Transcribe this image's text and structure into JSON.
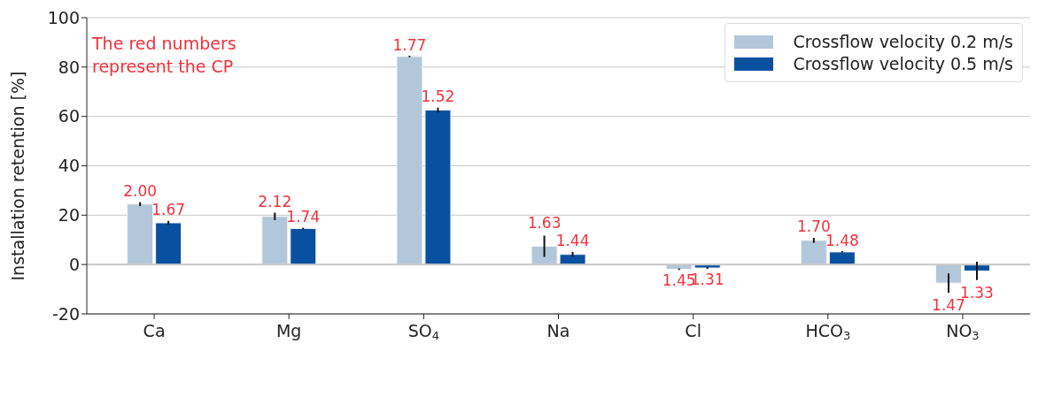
{
  "chart_data": {
    "type": "bar",
    "ylabel": "Installation retention [%]",
    "categories": [
      "Ca",
      "Mg",
      "SO$_{4}$",
      "Na",
      "Cl",
      "HCO$_{3}$",
      "NO$_{3}$"
    ],
    "series": [
      {
        "name": "Crossflow velocity 0.2 m/s",
        "color": "#b3c7da",
        "values": [
          24.5,
          19.5,
          84.3,
          7.4,
          -1.9,
          9.8,
          -7.5
        ],
        "errors": [
          0.8,
          1.5,
          0.3,
          4.3,
          0.3,
          1.0,
          3.9
        ]
      },
      {
        "name": "Crossflow velocity 0.5 m/s",
        "color": "#0a50a0",
        "values": [
          16.9,
          14.6,
          62.6,
          4.1,
          -1.4,
          5.1,
          -2.6
        ],
        "errors": [
          0.8,
          0.3,
          1.0,
          1.0,
          0.4,
          0.3,
          3.7
        ]
      }
    ],
    "ylim": [
      -20,
      100
    ],
    "yticks": [
      -20,
      0,
      20,
      40,
      60,
      80,
      100
    ],
    "grid": "y",
    "legend": "top right",
    "annotations": [
      "The red numbers represent the CP",
      {
        "text": "2.00",
        "x": "Ca",
        "y": 24.5
      },
      {
        "text": "1.67",
        "x": "Ca",
        "y": 16.9
      },
      {
        "text": "2.12",
        "x": "Mg",
        "y": 19.5
      },
      {
        "text": "1.74",
        "x": "Mg",
        "y": 14.6
      },
      {
        "text": "1.77",
        "x": "SO$_{4}$",
        "y": 84.3
      },
      {
        "text": "1.52",
        "x": "SO$_{4}$",
        "y": 62.6
      },
      {
        "text": "1.63",
        "x": "Na",
        "y": 7.4
      },
      {
        "text": "1.44",
        "x": "Na",
        "y": 4.1
      },
      {
        "text": "1.45",
        "x": "Cl",
        "y": -1.9
      },
      {
        "text": "1.31",
        "x": "Cl",
        "y": -1.4
      },
      {
        "text": "1.70",
        "x": "HCO$_{3}$",
        "y": 9.8
      },
      {
        "text": "1.48",
        "x": "HCO$_{3}$",
        "y": 5.1
      },
      {
        "text": "1.47",
        "x": "NO$_{3}$",
        "y": -7.5
      },
      {
        "text": "1.33",
        "x": "NO$_{3}$",
        "y": -2.6
      }
    ]
  }
}
